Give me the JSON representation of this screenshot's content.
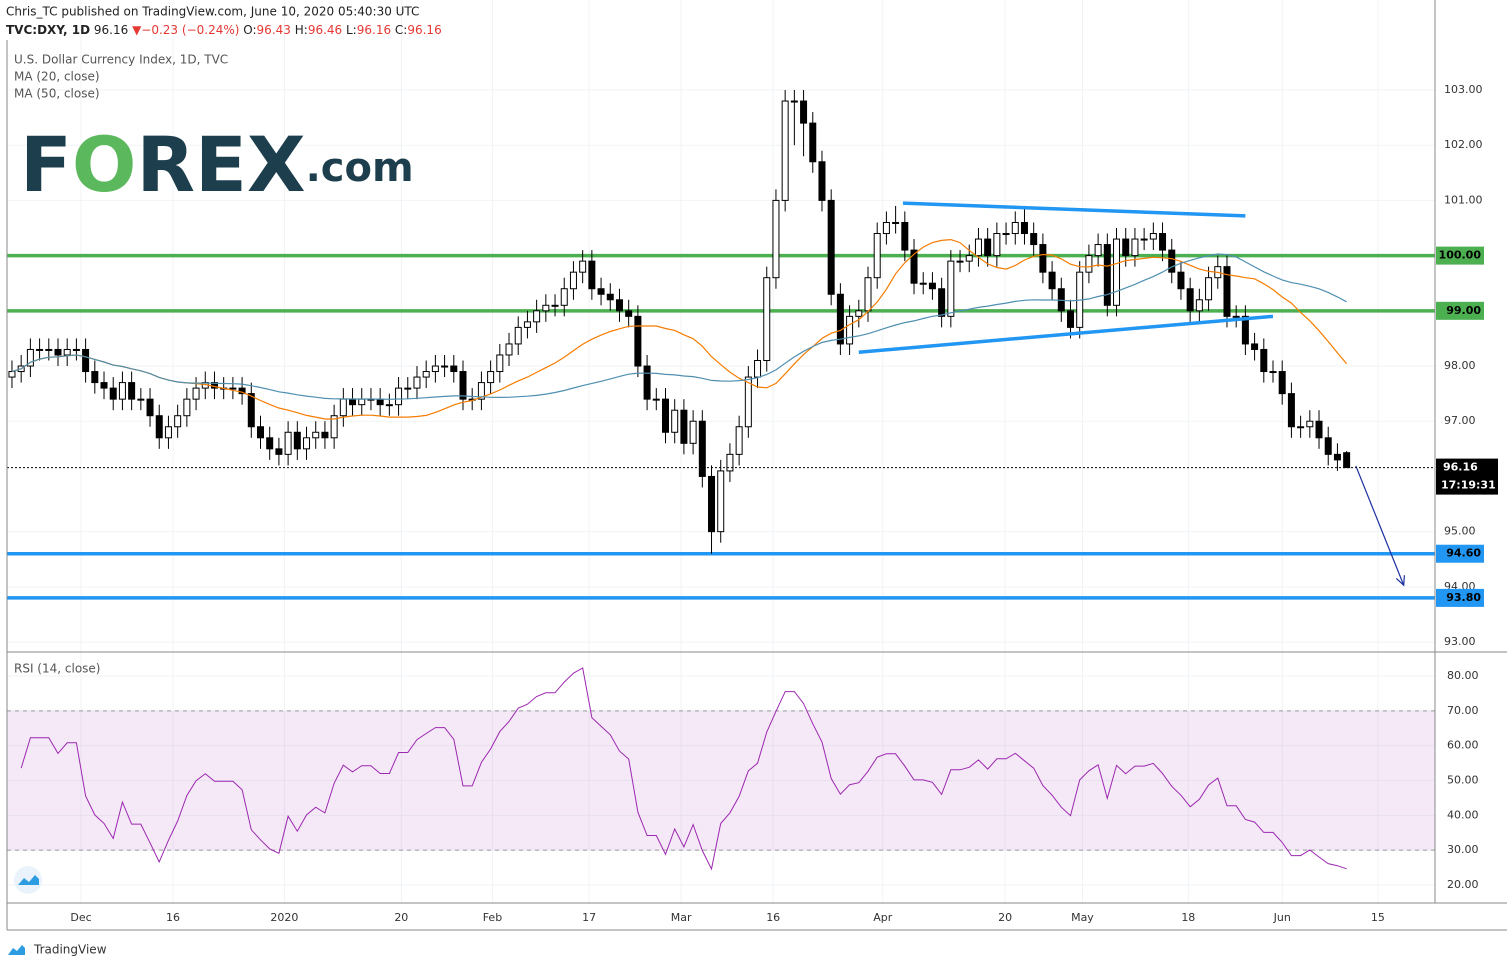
{
  "header": {
    "publisher": "Chris_TC published on TradingView.com, June 10, 2020 05:40:30 UTC",
    "symbol": "TVC:DXY, 1D",
    "arrow": "▼",
    "change": "−0.23 (−0.24%)",
    "ohlc_labels": [
      "O:",
      "H:",
      "L:",
      "C:"
    ]
  },
  "legend": {
    "title": "U.S. Dollar Currency Index, 1D, TVC",
    "ma20": "MA (20, close)",
    "ma50": "MA (50, close)",
    "rsi": "RSI (14, close)"
  },
  "logo": {
    "parts": [
      "F",
      "O",
      "REX",
      ".com"
    ]
  },
  "footer": "TradingView",
  "chart_data": {
    "type": "candlestick",
    "xlim": [
      -0.54,
      154.6
    ],
    "xticks": [
      {
        "value": 7.5,
        "label": "Dec"
      },
      {
        "value": 17.5,
        "label": "16"
      },
      {
        "value": 29.6,
        "label": "2020"
      },
      {
        "value": 42.3,
        "label": "20"
      },
      {
        "value": 52.2,
        "label": "Feb"
      },
      {
        "value": 62.7,
        "label": "17"
      },
      {
        "value": 72.7,
        "label": "Mar"
      },
      {
        "value": 82.7,
        "label": "16"
      },
      {
        "value": 94.6,
        "label": "Apr"
      },
      {
        "value": 107.9,
        "label": "20"
      },
      {
        "value": 116.3,
        "label": "May"
      },
      {
        "value": 127.8,
        "label": "18"
      },
      {
        "value": 138,
        "label": "Jun"
      },
      {
        "value": 148.4,
        "label": "15"
      }
    ],
    "ylim": [
      92.82,
      104.63
    ],
    "yticks": [
      {
        "value": 93,
        "label": "93.00"
      },
      {
        "value": 94,
        "label": "94.00"
      },
      {
        "value": 95,
        "label": "95.00"
      },
      {
        "value": 97,
        "label": "97.00"
      },
      {
        "value": 98,
        "label": "98.00"
      },
      {
        "value": 101,
        "label": "101.00"
      },
      {
        "value": 102,
        "label": "102.00"
      },
      {
        "value": 103,
        "label": "103.00"
      }
    ],
    "up_color": "#ffffff",
    "down_color": "#000000",
    "series": {
      "open": [
        97.8,
        97.9,
        98.0,
        98.3,
        98.3,
        98.3,
        98.2,
        98.3,
        98.3,
        97.9,
        97.7,
        97.6,
        97.4,
        97.7,
        97.4,
        97.4,
        97.1,
        96.7,
        96.9,
        97.1,
        97.4,
        97.6,
        97.7,
        97.6,
        97.6,
        97.6,
        97.5,
        96.9,
        96.7,
        96.5,
        96.4,
        96.8,
        96.5,
        96.7,
        96.8,
        96.7,
        97.1,
        97.4,
        97.3,
        97.4,
        97.4,
        97.3,
        97.3,
        97.6,
        97.6,
        97.8,
        97.9,
        98.0,
        98.0,
        97.9,
        97.4,
        97.4,
        97.7,
        97.9,
        98.2,
        98.4,
        98.7,
        98.8,
        99.0,
        99.1,
        99.1,
        99.4,
        99.7,
        99.9,
        99.4,
        99.3,
        99.2,
        99.0,
        98.9,
        98.0,
        97.4,
        97.4,
        96.8,
        97.2,
        96.6,
        97.0,
        96.0,
        95.0,
        96.1,
        96.4,
        96.9,
        97.8,
        98.1,
        99.6,
        101.0,
        102.8,
        102.8,
        102.4,
        101.7,
        101.0,
        99.3,
        98.4,
        98.9,
        99.0,
        99.6,
        100.4,
        100.6,
        100.6,
        100.1,
        99.5,
        99.5,
        99.4,
        98.9,
        99.9,
        99.9,
        100.0,
        100.3,
        100.0,
        100.4,
        100.4,
        100.6,
        100.4,
        100.2,
        99.7,
        99.4,
        99.0,
        98.7,
        99.7,
        100.0,
        100.2,
        99.1,
        100.3,
        100.0,
        100.3,
        100.3,
        100.4,
        100.1,
        99.7,
        99.4,
        99.0,
        99.2,
        99.6,
        99.8,
        98.9,
        98.9,
        98.4,
        98.3,
        97.9,
        97.9,
        97.5,
        96.9,
        96.9,
        97.0,
        96.7,
        96.4,
        96.43
      ],
      "high": [
        98.1,
        98.2,
        98.5,
        98.5,
        98.5,
        98.5,
        98.5,
        98.5,
        98.5,
        98.1,
        97.9,
        97.8,
        97.9,
        97.9,
        97.6,
        97.6,
        97.3,
        97.1,
        97.3,
        97.6,
        97.8,
        97.9,
        97.9,
        97.8,
        97.8,
        97.8,
        97.7,
        97.1,
        96.9,
        96.7,
        97.0,
        97.0,
        96.9,
        97.0,
        97.0,
        97.3,
        97.6,
        97.6,
        97.6,
        97.6,
        97.6,
        97.5,
        97.8,
        97.8,
        98.0,
        98.1,
        98.2,
        98.2,
        98.2,
        98.1,
        97.6,
        97.9,
        98.1,
        98.4,
        98.6,
        98.9,
        99.0,
        99.2,
        99.3,
        99.3,
        99.6,
        99.9,
        100.1,
        100.1,
        99.6,
        99.5,
        99.4,
        99.2,
        99.1,
        98.2,
        97.6,
        97.6,
        97.4,
        97.4,
        97.2,
        97.2,
        96.2,
        96.3,
        96.6,
        97.1,
        98.0,
        98.3,
        99.8,
        101.2,
        103.0,
        103.0,
        103.0,
        102.6,
        101.9,
        101.2,
        99.5,
        99.1,
        99.2,
        99.8,
        100.6,
        100.8,
        100.9,
        100.8,
        100.3,
        99.7,
        99.7,
        99.6,
        100.1,
        100.1,
        100.2,
        100.5,
        100.5,
        100.6,
        100.6,
        100.8,
        100.9,
        100.6,
        100.4,
        99.9,
        99.6,
        99.2,
        99.9,
        100.2,
        100.4,
        100.4,
        100.5,
        100.5,
        100.5,
        100.5,
        100.6,
        100.6,
        100.3,
        99.9,
        99.6,
        99.4,
        99.8,
        100.0,
        100.0,
        99.1,
        99.1,
        98.6,
        98.5,
        98.1,
        98.1,
        97.7,
        97.1,
        97.2,
        97.2,
        96.9,
        96.6,
        96.46
      ],
      "low": [
        97.6,
        97.7,
        97.8,
        98.1,
        98.1,
        98.0,
        98.0,
        98.1,
        97.7,
        97.5,
        97.4,
        97.2,
        97.2,
        97.2,
        97.2,
        96.9,
        96.5,
        96.5,
        96.7,
        96.9,
        97.2,
        97.4,
        97.4,
        97.4,
        97.4,
        97.3,
        96.7,
        96.5,
        96.3,
        96.2,
        96.2,
        96.3,
        96.3,
        96.5,
        96.5,
        96.5,
        96.9,
        97.1,
        97.1,
        97.2,
        97.1,
        97.1,
        97.1,
        97.4,
        97.4,
        97.6,
        97.7,
        97.8,
        97.7,
        97.2,
        97.2,
        97.2,
        97.5,
        97.7,
        98.0,
        98.2,
        98.5,
        98.6,
        98.8,
        98.9,
        98.9,
        99.2,
        99.5,
        99.2,
        99.1,
        99.0,
        98.8,
        98.7,
        97.8,
        97.2,
        97.2,
        96.6,
        96.6,
        96.4,
        96.4,
        95.8,
        94.6,
        94.8,
        95.9,
        96.2,
        96.7,
        97.6,
        97.9,
        99.4,
        100.8,
        102.0,
        101.8,
        101.5,
        100.8,
        99.1,
        98.2,
        98.2,
        98.7,
        98.8,
        99.4,
        100.2,
        100.4,
        99.9,
        99.3,
        99.3,
        99.2,
        98.7,
        98.7,
        99.7,
        99.7,
        99.8,
        99.8,
        99.8,
        100.2,
        100.2,
        100.2,
        100.0,
        99.5,
        99.2,
        98.8,
        98.5,
        98.5,
        99.5,
        99.8,
        98.9,
        98.9,
        99.8,
        99.8,
        100.1,
        100.1,
        99.9,
        99.5,
        99.2,
        98.8,
        98.8,
        99.0,
        99.4,
        98.7,
        98.7,
        98.2,
        98.1,
        97.7,
        97.7,
        97.3,
        96.7,
        96.7,
        96.7,
        96.5,
        96.2,
        96.1,
        96.16
      ],
      "close": [
        97.9,
        98.0,
        98.3,
        98.3,
        98.3,
        98.2,
        98.3,
        98.3,
        97.9,
        97.7,
        97.6,
        97.4,
        97.7,
        97.4,
        97.4,
        97.1,
        96.7,
        96.9,
        97.1,
        97.4,
        97.6,
        97.7,
        97.6,
        97.6,
        97.6,
        97.5,
        96.9,
        96.7,
        96.5,
        96.4,
        96.8,
        96.5,
        96.7,
        96.8,
        96.7,
        97.1,
        97.4,
        97.3,
        97.4,
        97.4,
        97.3,
        97.3,
        97.6,
        97.6,
        97.8,
        97.9,
        98.0,
        98.0,
        97.9,
        97.4,
        97.4,
        97.7,
        97.9,
        98.2,
        98.4,
        98.7,
        98.8,
        99.0,
        99.1,
        99.1,
        99.4,
        99.7,
        99.9,
        99.4,
        99.3,
        99.2,
        99.0,
        98.9,
        98.0,
        97.4,
        97.4,
        96.8,
        97.2,
        96.6,
        97.0,
        96.0,
        95.0,
        96.1,
        96.4,
        96.9,
        97.8,
        98.1,
        99.6,
        101.0,
        102.8,
        102.8,
        102.4,
        101.7,
        101.0,
        99.3,
        98.4,
        98.9,
        99.0,
        99.6,
        100.4,
        100.6,
        100.6,
        100.1,
        99.5,
        99.5,
        99.4,
        98.9,
        99.9,
        99.9,
        100.0,
        100.3,
        100.0,
        100.4,
        100.4,
        100.6,
        100.4,
        100.2,
        99.7,
        99.4,
        99.0,
        98.7,
        99.7,
        100.0,
        100.2,
        99.1,
        100.3,
        100.0,
        100.3,
        100.3,
        100.4,
        100.1,
        99.7,
        99.4,
        99.0,
        99.2,
        99.6,
        99.8,
        98.9,
        98.9,
        98.4,
        98.3,
        97.9,
        97.9,
        97.5,
        96.9,
        96.9,
        97.0,
        96.7,
        96.4,
        96.3,
        96.16
      ]
    },
    "ma": [
      {
        "period": 20,
        "color": "#f57c00"
      },
      {
        "period": 50,
        "color": "#4f8fb0"
      }
    ],
    "levels": [
      {
        "value": 100,
        "label": "100.00",
        "color": "#4caf50"
      },
      {
        "value": 99,
        "label": "99.00",
        "color": "#4caf50"
      },
      {
        "value": 94.6,
        "label": "94.60",
        "color": "#2196f3"
      },
      {
        "value": 93.8,
        "label": "93.80",
        "color": "#2196f3"
      }
    ],
    "trendlines": [
      {
        "x": [
          96.8,
          134
        ],
        "y": [
          100.95,
          100.72
        ],
        "color": "#2196f3"
      },
      {
        "x": [
          92,
          137
        ],
        "y": [
          98.25,
          98.9
        ],
        "color": "#2196f3"
      }
    ],
    "arrow": {
      "x": [
        146,
        151.2
      ],
      "y": [
        96.19,
        94.03
      ],
      "color": "#1a2fa0"
    },
    "last_price": {
      "label": "96.16",
      "countdown": "17:19:31"
    },
    "rsi": {
      "period": 14,
      "color": "#9c27b0",
      "ylim": [
        14.83,
        86.89
      ],
      "band": [
        30,
        70
      ],
      "yticks": [
        {
          "value": 20,
          "label": "20.00"
        },
        {
          "value": 30,
          "label": "30.00"
        },
        {
          "value": 40,
          "label": "40.00"
        },
        {
          "value": 50,
          "label": "50.00"
        },
        {
          "value": 60,
          "label": "60.00"
        },
        {
          "value": 70,
          "label": "70.00"
        },
        {
          "value": 80,
          "label": "80.00"
        }
      ]
    }
  }
}
